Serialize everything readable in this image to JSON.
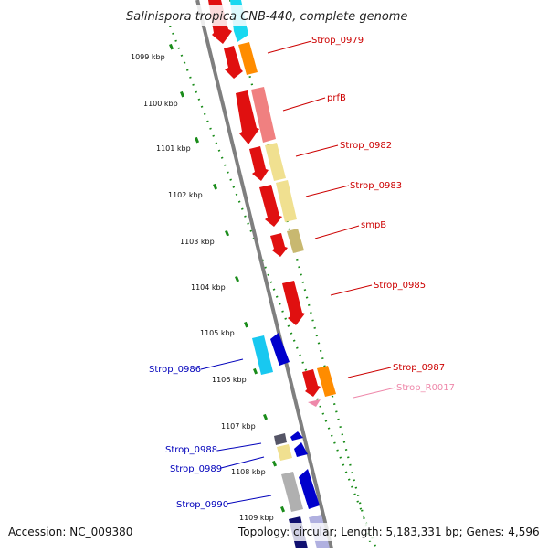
{
  "title": "Salinispora tropica CNB-440, complete genome",
  "accession": "Accession: NC_009380",
  "topology": "Topology: circular; Length: 5,183,331 bp; Genes: 4,596",
  "colors": {
    "backbone": "#7f7f7f",
    "ruler": "#1a8c1a",
    "label_red": "#cc0000",
    "label_blue": "#0000bb",
    "label_pink": "#ee88aa"
  },
  "kbp_ticks": [
    "1099 kbp",
    "1100 kbp",
    "1101 kbp",
    "1102 kbp",
    "1103 kbp",
    "1104 kbp",
    "1105 kbp",
    "1106 kbp",
    "1107 kbp",
    "1108 kbp",
    "1109 kbp"
  ],
  "genes": [
    {
      "label": "Strop_0979",
      "side": "right",
      "color": "#cc0000"
    },
    {
      "label": "prfB",
      "side": "right",
      "color": "#cc0000"
    },
    {
      "label": "Strop_0982",
      "side": "right",
      "color": "#cc0000"
    },
    {
      "label": "Strop_0983",
      "side": "right",
      "color": "#cc0000"
    },
    {
      "label": "smpB",
      "side": "right",
      "color": "#cc0000"
    },
    {
      "label": "Strop_0985",
      "side": "right",
      "color": "#cc0000"
    },
    {
      "label": "Strop_0987",
      "side": "right",
      "color": "#cc0000"
    },
    {
      "label": "Strop_R0017",
      "side": "right",
      "color": "#ee88aa"
    },
    {
      "label": "Strop_0986",
      "side": "left",
      "color": "#0000bb"
    },
    {
      "label": "Strop_0988",
      "side": "left",
      "color": "#0000bb"
    },
    {
      "label": "Strop_0989",
      "side": "left",
      "color": "#0000bb"
    },
    {
      "label": "Strop_0990",
      "side": "left",
      "color": "#0000bb"
    }
  ]
}
